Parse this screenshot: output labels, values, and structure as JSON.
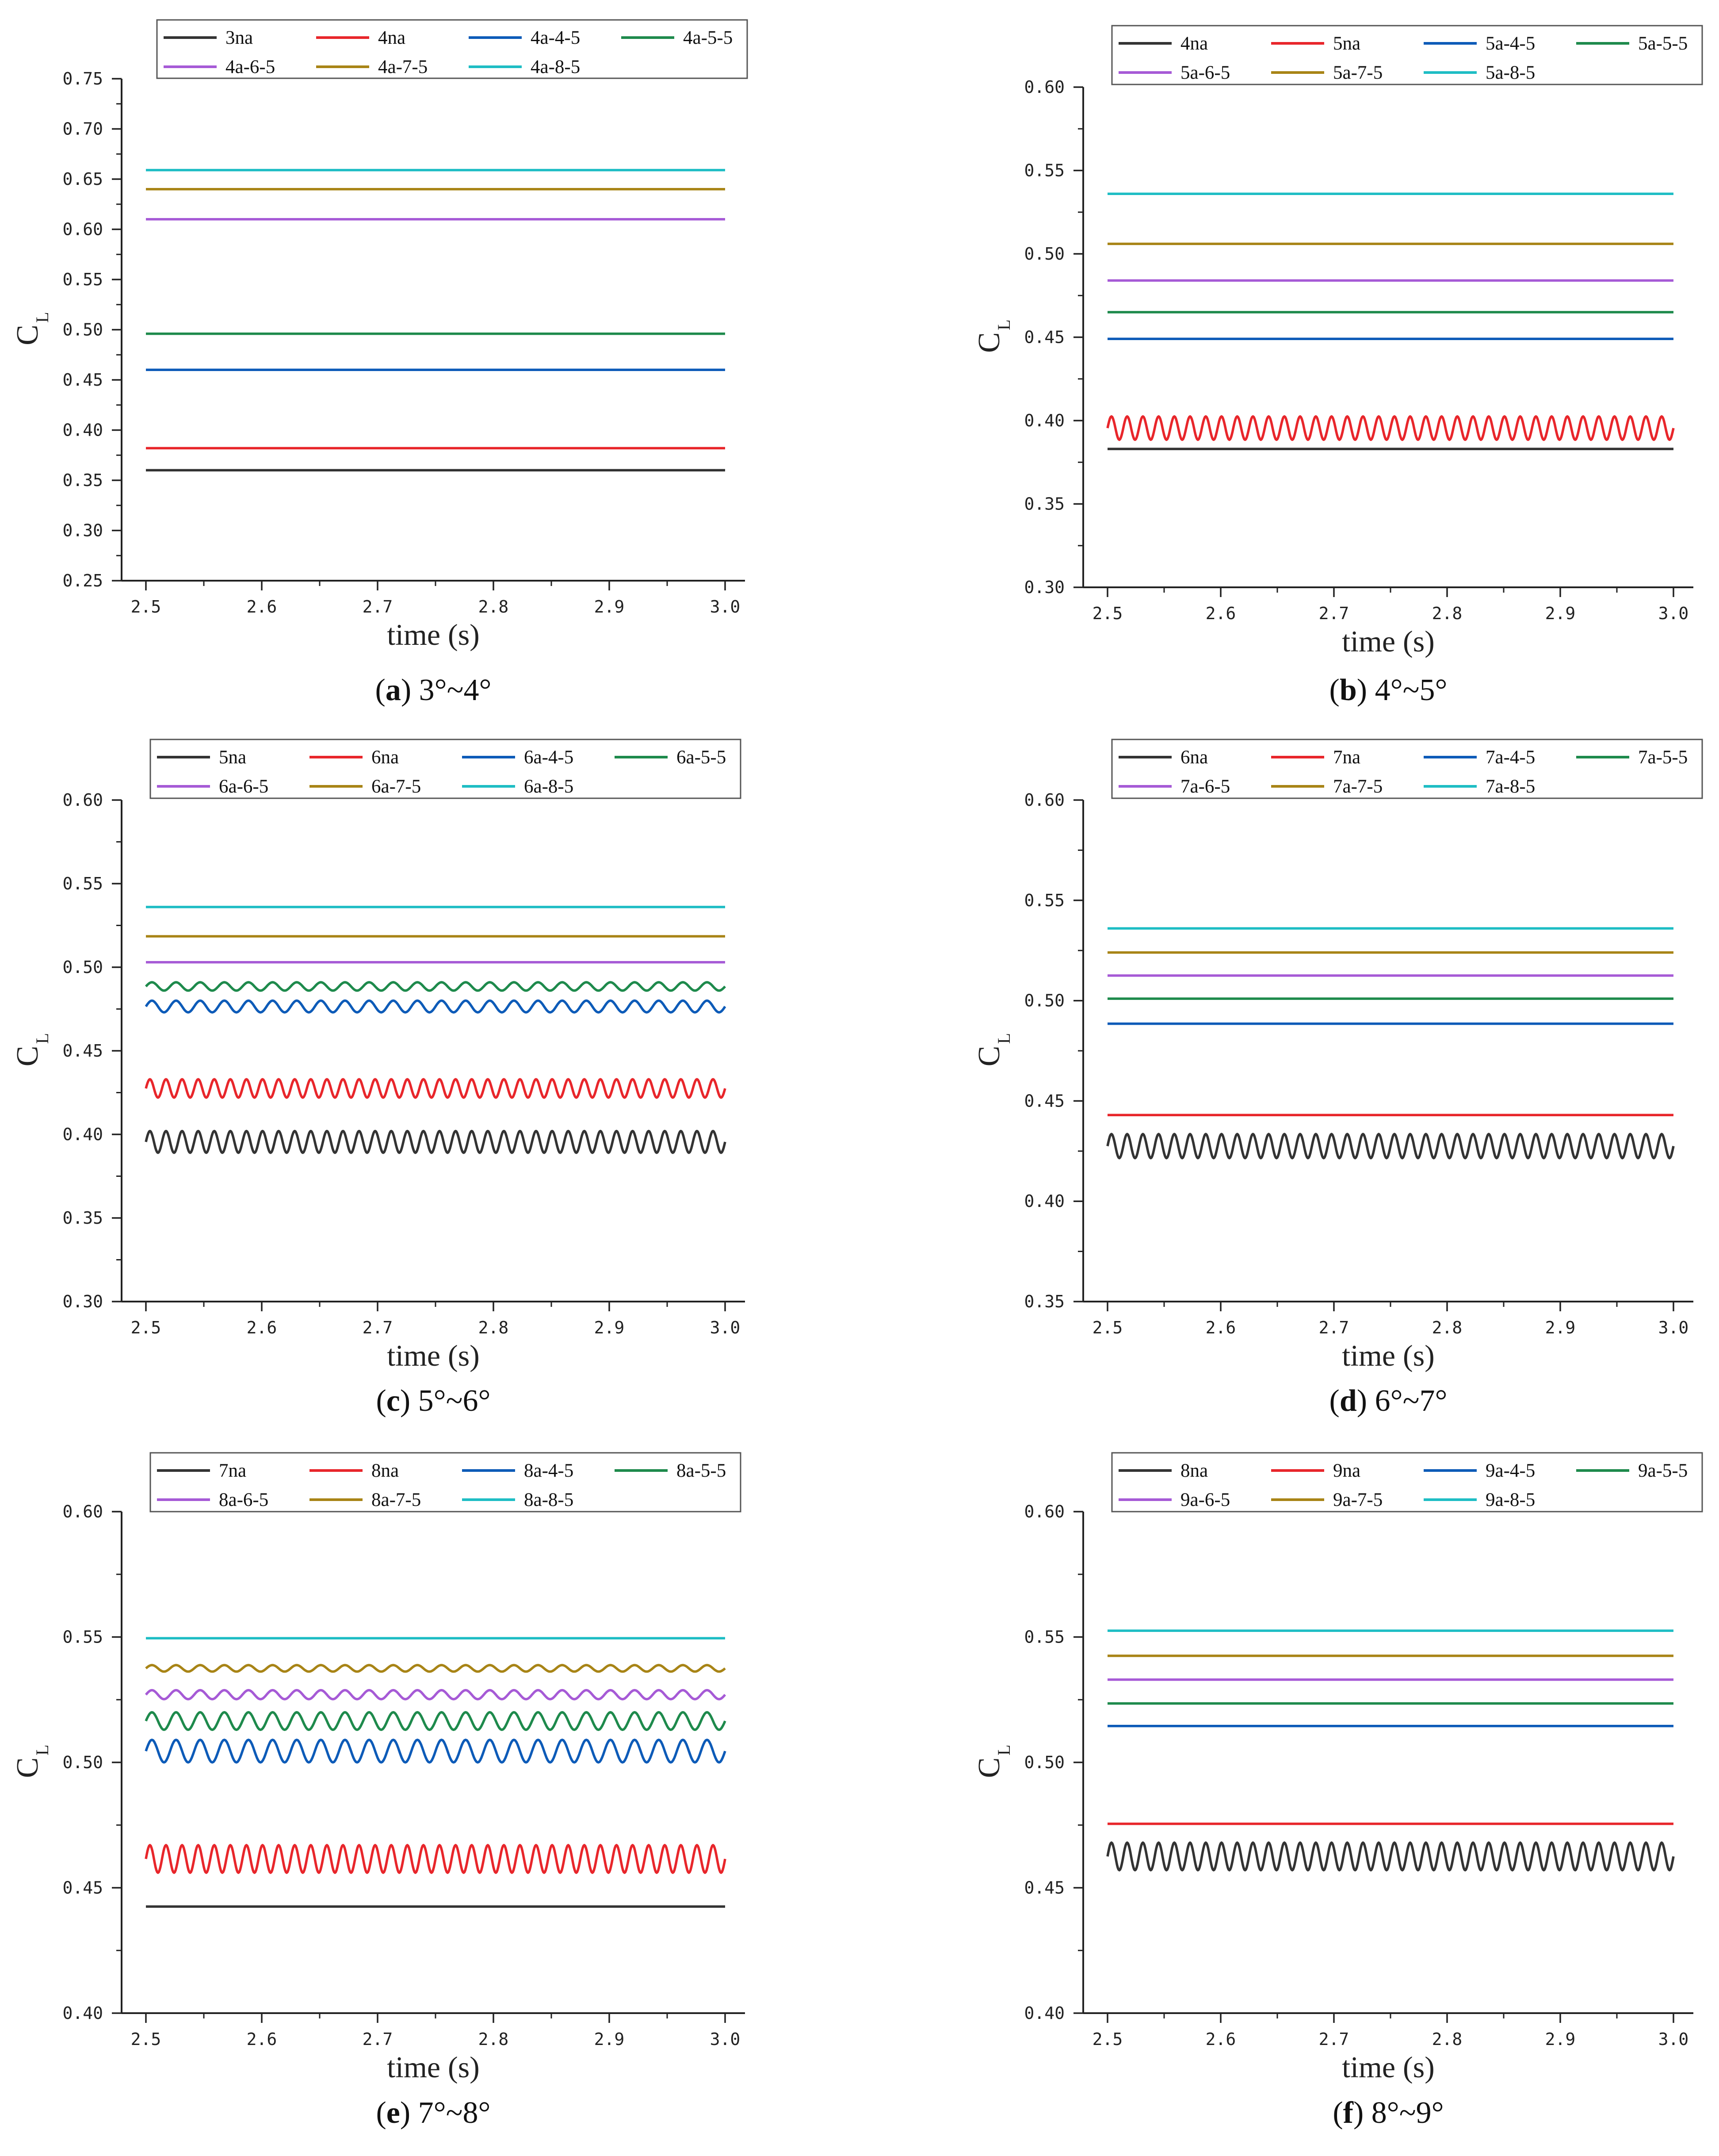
{
  "colors": {
    "black": "#333333",
    "red": "#e8262b",
    "blue": "#0d5bb8",
    "green": "#1e8a4c",
    "purple": "#a65ad6",
    "gold": "#a88416",
    "cyan": "#1ebdc4"
  },
  "chart_data": [
    {
      "type": "line",
      "panel_label": "a",
      "caption": "3°~4°",
      "xlabel": "time (s)",
      "ylabel": "C",
      "ylabel_sub": "L",
      "xlim": [
        2.5,
        3.0
      ],
      "ylim": [
        0.25,
        0.75
      ],
      "xticks": [
        "2.5",
        "2.6",
        "2.7",
        "2.8",
        "2.9",
        "3.0"
      ],
      "yticks": [
        "0.25",
        "0.30",
        "0.35",
        "0.40",
        "0.45",
        "0.50",
        "0.55",
        "0.60",
        "0.65",
        "0.70",
        "0.75"
      ],
      "series": [
        {
          "name": "3na",
          "color": "black",
          "mean": 0.36,
          "amp": 0,
          "cycles": 0
        },
        {
          "name": "4na",
          "color": "red",
          "mean": 0.382,
          "amp": 0,
          "cycles": 0
        },
        {
          "name": "4a-4-5",
          "color": "blue",
          "mean": 0.46,
          "amp": 0,
          "cycles": 0
        },
        {
          "name": "4a-5-5",
          "color": "green",
          "mean": 0.496,
          "amp": 0,
          "cycles": 0
        },
        {
          "name": "4a-6-5",
          "color": "purple",
          "mean": 0.61,
          "amp": 0,
          "cycles": 0
        },
        {
          "name": "4a-7-5",
          "color": "gold",
          "mean": 0.64,
          "amp": 0,
          "cycles": 0
        },
        {
          "name": "4a-8-5",
          "color": "cyan",
          "mean": 0.659,
          "amp": 0,
          "cycles": 0
        }
      ]
    },
    {
      "type": "line",
      "panel_label": "b",
      "caption": "4°~5°",
      "xlabel": "time (s)",
      "ylabel": "C",
      "ylabel_sub": "L",
      "xlim": [
        2.5,
        3.0
      ],
      "ylim": [
        0.3,
        0.6
      ],
      "xticks": [
        "2.5",
        "2.6",
        "2.7",
        "2.8",
        "2.9",
        "3.0"
      ],
      "yticks": [
        "0.30",
        "0.35",
        "0.40",
        "0.45",
        "0.50",
        "0.55",
        "0.60"
      ],
      "series": [
        {
          "name": "4na",
          "color": "black",
          "mean": 0.383,
          "amp": 0,
          "cycles": 0
        },
        {
          "name": "5na",
          "color": "red",
          "mean": 0.3955,
          "amp": 0.007,
          "cycles": 36
        },
        {
          "name": "5a-4-5",
          "color": "blue",
          "mean": 0.449,
          "amp": 0,
          "cycles": 0
        },
        {
          "name": "5a-5-5",
          "color": "green",
          "mean": 0.465,
          "amp": 0,
          "cycles": 0
        },
        {
          "name": "5a-6-5",
          "color": "purple",
          "mean": 0.484,
          "amp": 0,
          "cycles": 0
        },
        {
          "name": "5a-7-5",
          "color": "gold",
          "mean": 0.506,
          "amp": 0,
          "cycles": 0
        },
        {
          "name": "5a-8-5",
          "color": "cyan",
          "mean": 0.536,
          "amp": 0,
          "cycles": 0
        }
      ]
    },
    {
      "type": "line",
      "panel_label": "c",
      "caption": "5°~6°",
      "xlabel": "time (s)",
      "ylabel": "C",
      "ylabel_sub": "L",
      "xlim": [
        2.5,
        3.0
      ],
      "ylim": [
        0.3,
        0.6
      ],
      "xticks": [
        "2.5",
        "2.6",
        "2.7",
        "2.8",
        "2.9",
        "3.0"
      ],
      "yticks": [
        "0.30",
        "0.35",
        "0.40",
        "0.45",
        "0.50",
        "0.55",
        "0.60"
      ],
      "series": [
        {
          "name": "5na",
          "color": "black",
          "mean": 0.3955,
          "amp": 0.0065,
          "cycles": 36
        },
        {
          "name": "6na",
          "color": "red",
          "mean": 0.4275,
          "amp": 0.0055,
          "cycles": 36
        },
        {
          "name": "6a-4-5",
          "color": "blue",
          "mean": 0.4765,
          "amp": 0.0035,
          "cycles": 24
        },
        {
          "name": "6a-5-5",
          "color": "green",
          "mean": 0.4885,
          "amp": 0.0025,
          "cycles": 24
        },
        {
          "name": "6a-6-5",
          "color": "purple",
          "mean": 0.503,
          "amp": 0,
          "cycles": 0
        },
        {
          "name": "6a-7-5",
          "color": "gold",
          "mean": 0.5185,
          "amp": 0,
          "cycles": 0
        },
        {
          "name": "6a-8-5",
          "color": "cyan",
          "mean": 0.536,
          "amp": 0,
          "cycles": 0
        }
      ]
    },
    {
      "type": "line",
      "panel_label": "d",
      "caption": "6°~7°",
      "xlabel": "time (s)",
      "ylabel": "C",
      "ylabel_sub": "L",
      "xlim": [
        2.5,
        3.0
      ],
      "ylim": [
        0.35,
        0.6
      ],
      "xticks": [
        "2.5",
        "2.6",
        "2.7",
        "2.8",
        "2.9",
        "3.0"
      ],
      "yticks": [
        "0.35",
        "0.40",
        "0.45",
        "0.50",
        "0.55",
        "0.60"
      ],
      "series": [
        {
          "name": "6na",
          "color": "black",
          "mean": 0.4275,
          "amp": 0.006,
          "cycles": 36
        },
        {
          "name": "7na",
          "color": "red",
          "mean": 0.443,
          "amp": 0,
          "cycles": 0
        },
        {
          "name": "7a-4-5",
          "color": "blue",
          "mean": 0.4885,
          "amp": 0,
          "cycles": 0
        },
        {
          "name": "7a-5-5",
          "color": "green",
          "mean": 0.501,
          "amp": 0,
          "cycles": 0
        },
        {
          "name": "7a-6-5",
          "color": "purple",
          "mean": 0.5125,
          "amp": 0,
          "cycles": 0
        },
        {
          "name": "7a-7-5",
          "color": "gold",
          "mean": 0.524,
          "amp": 0,
          "cycles": 0
        },
        {
          "name": "7a-8-5",
          "color": "cyan",
          "mean": 0.536,
          "amp": 0,
          "cycles": 0
        }
      ]
    },
    {
      "type": "line",
      "panel_label": "e",
      "caption": "7°~8°",
      "xlabel": "time (s)",
      "ylabel": "C",
      "ylabel_sub": "L",
      "xlim": [
        2.5,
        3.0
      ],
      "ylim": [
        0.4,
        0.6
      ],
      "xticks": [
        "2.5",
        "2.6",
        "2.7",
        "2.8",
        "2.9",
        "3.0"
      ],
      "yticks": [
        "0.40",
        "0.45",
        "0.50",
        "0.55",
        "0.60"
      ],
      "series": [
        {
          "name": "7na",
          "color": "black",
          "mean": 0.4425,
          "amp": 0,
          "cycles": 0
        },
        {
          "name": "8na",
          "color": "red",
          "mean": 0.4615,
          "amp": 0.0055,
          "cycles": 36
        },
        {
          "name": "8a-4-5",
          "color": "blue",
          "mean": 0.5045,
          "amp": 0.0045,
          "cycles": 24
        },
        {
          "name": "8a-5-5",
          "color": "green",
          "mean": 0.5165,
          "amp": 0.0035,
          "cycles": 24
        },
        {
          "name": "8a-6-5",
          "color": "purple",
          "mean": 0.527,
          "amp": 0.0018,
          "cycles": 24
        },
        {
          "name": "8a-7-5",
          "color": "gold",
          "mean": 0.5375,
          "amp": 0.0013,
          "cycles": 24
        },
        {
          "name": "8a-8-5",
          "color": "cyan",
          "mean": 0.5495,
          "amp": 0,
          "cycles": 0
        }
      ]
    },
    {
      "type": "line",
      "panel_label": "f",
      "caption": "8°~9°",
      "xlabel": "time (s)",
      "ylabel": "C",
      "ylabel_sub": "L",
      "xlim": [
        2.5,
        3.0
      ],
      "ylim": [
        0.4,
        0.6
      ],
      "xticks": [
        "2.5",
        "2.6",
        "2.7",
        "2.8",
        "2.9",
        "3.0"
      ],
      "yticks": [
        "0.40",
        "0.45",
        "0.50",
        "0.55",
        "0.60"
      ],
      "series": [
        {
          "name": "8na",
          "color": "black",
          "mean": 0.4625,
          "amp": 0.0055,
          "cycles": 36
        },
        {
          "name": "9na",
          "color": "red",
          "mean": 0.4755,
          "amp": 0,
          "cycles": 0
        },
        {
          "name": "9a-4-5",
          "color": "blue",
          "mean": 0.5145,
          "amp": 0,
          "cycles": 0
        },
        {
          "name": "9a-5-5",
          "color": "green",
          "mean": 0.5235,
          "amp": 0,
          "cycles": 0
        },
        {
          "name": "9a-6-5",
          "color": "purple",
          "mean": 0.533,
          "amp": 0,
          "cycles": 0
        },
        {
          "name": "9a-7-5",
          "color": "gold",
          "mean": 0.5425,
          "amp": 0,
          "cycles": 0
        },
        {
          "name": "9a-8-5",
          "color": "cyan",
          "mean": 0.5525,
          "amp": 0,
          "cycles": 0
        }
      ]
    }
  ]
}
